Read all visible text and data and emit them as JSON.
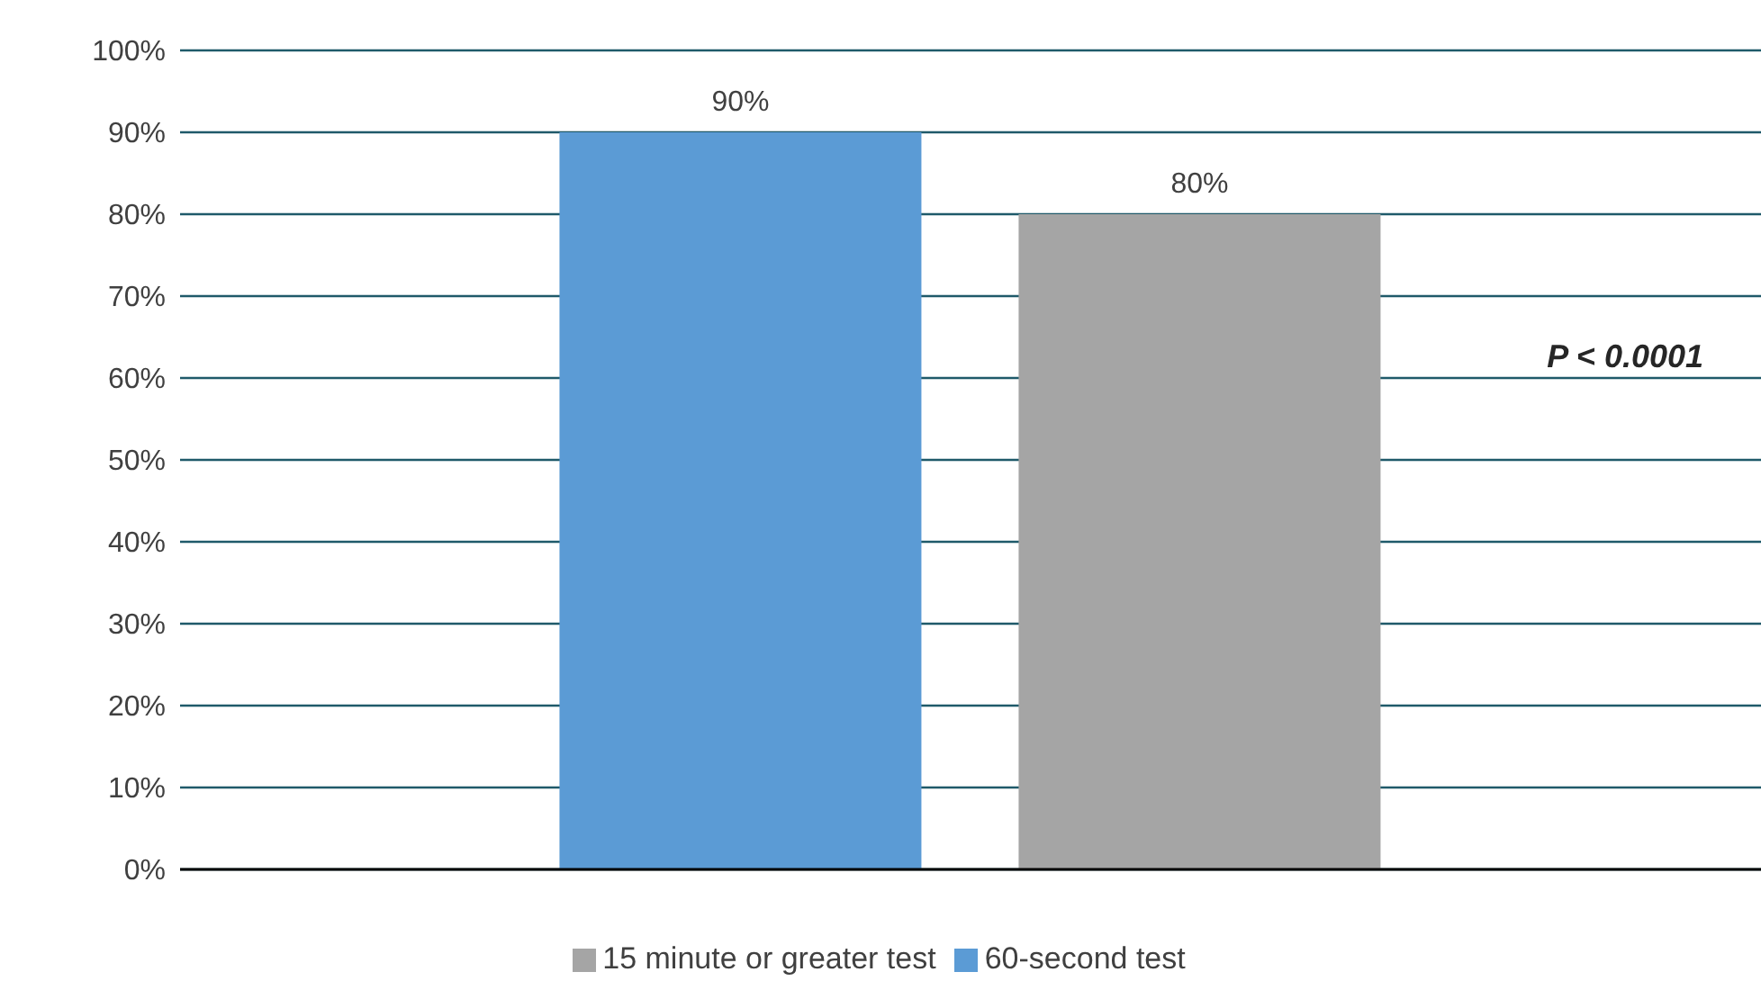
{
  "chart_data": {
    "type": "bar",
    "categories": [
      null
    ],
    "series": [
      {
        "name": "60-second test",
        "color": "#5b9bd5",
        "values": [
          90
        ],
        "value_labels": [
          "90%"
        ]
      },
      {
        "name": "15 minute or greater test",
        "color": "#a5a5a5",
        "values": [
          80
        ],
        "value_labels": [
          "80%"
        ]
      }
    ],
    "ylim": [
      0,
      100
    ],
    "yticks": [
      {
        "value": 0,
        "label": "0%"
      },
      {
        "value": 10,
        "label": "10%"
      },
      {
        "value": 20,
        "label": "20%"
      },
      {
        "value": 30,
        "label": "30%"
      },
      {
        "value": 40,
        "label": "40%"
      },
      {
        "value": 50,
        "label": "50%"
      },
      {
        "value": 60,
        "label": "60%"
      },
      {
        "value": 70,
        "label": "70%"
      },
      {
        "value": 80,
        "label": "80%"
      },
      {
        "value": 90,
        "label": "90%"
      },
      {
        "value": 100,
        "label": "100%"
      }
    ],
    "grid": "y",
    "legend": "bottom",
    "annotations": [
      "P < 0.0001"
    ]
  }
}
